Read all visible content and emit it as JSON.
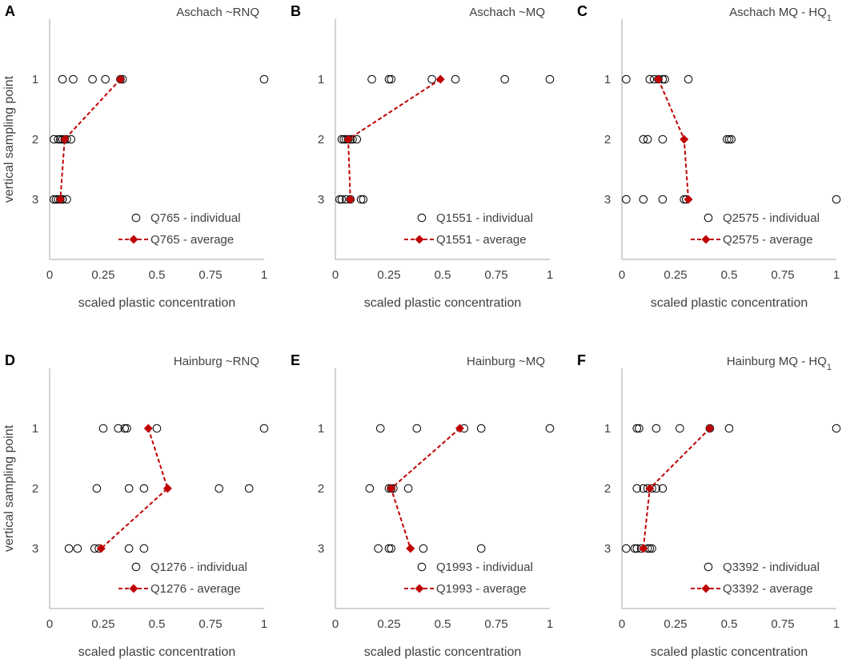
{
  "ylabel": "vertical sampling point",
  "xlabel": "scaled plastic concentration",
  "colors": {
    "average": "#c00000",
    "individual_marker": "#000000",
    "axis": "#a6a6a6",
    "text": "#404040"
  },
  "chart_data": [
    {
      "letter": "A",
      "type": "scatter",
      "title": "Aschach ~RNQ",
      "title_sub": "",
      "xlabel": "scaled plastic concentration",
      "ylabel": "vertical sampling point",
      "xlim": [
        0,
        1
      ],
      "ylim": [
        0,
        4
      ],
      "xticks": [
        0,
        0.25,
        0.5,
        0.75,
        1
      ],
      "xtick_labels": [
        "0",
        "0.25",
        "0.5",
        "0.75",
        "1"
      ],
      "yticks": [
        1,
        2,
        3
      ],
      "ytick_labels": [
        "1",
        "2",
        "3"
      ],
      "individual": {
        "name": "Q765 - individual",
        "points": [
          [
            0.06,
            1
          ],
          [
            0.11,
            1
          ],
          [
            0.2,
            1
          ],
          [
            0.26,
            1
          ],
          [
            0.33,
            1
          ],
          [
            0.34,
            1
          ],
          [
            1.0,
            1
          ],
          [
            0.02,
            2
          ],
          [
            0.04,
            2
          ],
          [
            0.05,
            2
          ],
          [
            0.06,
            2
          ],
          [
            0.07,
            2
          ],
          [
            0.08,
            2
          ],
          [
            0.1,
            2
          ],
          [
            0.02,
            3
          ],
          [
            0.03,
            3
          ],
          [
            0.04,
            3
          ],
          [
            0.05,
            3
          ],
          [
            0.06,
            3
          ],
          [
            0.06,
            3
          ],
          [
            0.08,
            3
          ]
        ]
      },
      "average": {
        "name": "Q765 - average",
        "points": [
          [
            0.33,
            1
          ],
          [
            0.07,
            2
          ],
          [
            0.05,
            3
          ]
        ]
      }
    },
    {
      "letter": "B",
      "type": "scatter",
      "title": "Aschach ~MQ",
      "title_sub": "",
      "xlabel": "scaled plastic concentration",
      "ylabel": "vertical sampling point",
      "xlim": [
        0,
        1
      ],
      "ylim": [
        0,
        4
      ],
      "xticks": [
        0,
        0.25,
        0.5,
        0.75,
        1
      ],
      "xtick_labels": [
        "0",
        "0.25",
        "0.5",
        "0.75",
        "1"
      ],
      "yticks": [
        1,
        2,
        3
      ],
      "ytick_labels": [
        "1",
        "2",
        "3"
      ],
      "individual": {
        "name": "Q1551 - individual",
        "points": [
          [
            0.17,
            1
          ],
          [
            0.25,
            1
          ],
          [
            0.26,
            1
          ],
          [
            0.45,
            1
          ],
          [
            0.56,
            1
          ],
          [
            0.79,
            1
          ],
          [
            1.0,
            1
          ],
          [
            0.03,
            2
          ],
          [
            0.04,
            2
          ],
          [
            0.05,
            2
          ],
          [
            0.06,
            2
          ],
          [
            0.07,
            2
          ],
          [
            0.08,
            2
          ],
          [
            0.1,
            2
          ],
          [
            0.02,
            3
          ],
          [
            0.03,
            3
          ],
          [
            0.05,
            3
          ],
          [
            0.07,
            3
          ],
          [
            0.12,
            3
          ],
          [
            0.13,
            3
          ]
        ]
      },
      "average": {
        "name": "Q1551 - average",
        "points": [
          [
            0.49,
            1
          ],
          [
            0.06,
            2
          ],
          [
            0.07,
            3
          ]
        ]
      }
    },
    {
      "letter": "C",
      "type": "scatter",
      "title": "Aschach MQ - HQ",
      "title_sub": "1",
      "xlabel": "scaled plastic concentration",
      "ylabel": "vertical sampling point",
      "xlim": [
        0,
        1
      ],
      "ylim": [
        0,
        4
      ],
      "xticks": [
        0,
        0.25,
        0.5,
        0.75,
        1
      ],
      "xtick_labels": [
        "0",
        "0.25",
        "0.5",
        "0.75",
        "1"
      ],
      "yticks": [
        1,
        2,
        3
      ],
      "ytick_labels": [
        "1",
        "2",
        "3"
      ],
      "individual": {
        "name": "Q2575 - individual",
        "points": [
          [
            0.02,
            1
          ],
          [
            0.13,
            1
          ],
          [
            0.15,
            1
          ],
          [
            0.17,
            1
          ],
          [
            0.19,
            1
          ],
          [
            0.2,
            1
          ],
          [
            0.31,
            1
          ],
          [
            0.1,
            2
          ],
          [
            0.12,
            2
          ],
          [
            0.19,
            2
          ],
          [
            0.49,
            2
          ],
          [
            0.5,
            2
          ],
          [
            0.51,
            2
          ],
          [
            0.02,
            3
          ],
          [
            0.1,
            3
          ],
          [
            0.19,
            3
          ],
          [
            0.29,
            3
          ],
          [
            0.3,
            3
          ],
          [
            1.0,
            3
          ]
        ]
      },
      "average": {
        "name": "Q2575 - average",
        "points": [
          [
            0.17,
            1
          ],
          [
            0.29,
            2
          ],
          [
            0.31,
            3
          ]
        ]
      }
    },
    {
      "letter": "D",
      "type": "scatter",
      "title": "Hainburg ~RNQ",
      "title_sub": "",
      "xlabel": "scaled plastic concentration",
      "ylabel": "vertical sampling point",
      "xlim": [
        0,
        1
      ],
      "ylim": [
        0,
        4
      ],
      "xticks": [
        0,
        0.25,
        0.5,
        0.75,
        1
      ],
      "xtick_labels": [
        "0",
        "0.25",
        "0.5",
        "0.75",
        "1"
      ],
      "yticks": [
        1,
        2,
        3
      ],
      "ytick_labels": [
        "1",
        "2",
        "3"
      ],
      "individual": {
        "name": "Q1276 - individual",
        "points": [
          [
            0.25,
            1
          ],
          [
            0.32,
            1
          ],
          [
            0.35,
            1
          ],
          [
            0.36,
            1
          ],
          [
            0.5,
            1
          ],
          [
            1.0,
            1
          ],
          [
            0.22,
            2
          ],
          [
            0.37,
            2
          ],
          [
            0.44,
            2
          ],
          [
            0.79,
            2
          ],
          [
            0.93,
            2
          ],
          [
            0.09,
            3
          ],
          [
            0.13,
            3
          ],
          [
            0.21,
            3
          ],
          [
            0.23,
            3
          ],
          [
            0.37,
            3
          ],
          [
            0.44,
            3
          ]
        ]
      },
      "average": {
        "name": "Q1276 - average",
        "points": [
          [
            0.46,
            1
          ],
          [
            0.55,
            2
          ],
          [
            0.24,
            3
          ]
        ]
      }
    },
    {
      "letter": "E",
      "type": "scatter",
      "title": "Hainburg ~MQ",
      "title_sub": "",
      "xlabel": "scaled plastic concentration",
      "ylabel": "vertical sampling point",
      "xlim": [
        0,
        1
      ],
      "ylim": [
        0,
        4
      ],
      "xticks": [
        0,
        0.25,
        0.5,
        0.75,
        1
      ],
      "xtick_labels": [
        "0",
        "0.25",
        "0.5",
        "0.75",
        "1"
      ],
      "yticks": [
        1,
        2,
        3
      ],
      "ytick_labels": [
        "1",
        "2",
        "3"
      ],
      "individual": {
        "name": "Q1993 - individual",
        "points": [
          [
            0.21,
            1
          ],
          [
            0.38,
            1
          ],
          [
            0.6,
            1
          ],
          [
            0.68,
            1
          ],
          [
            1.0,
            1
          ],
          [
            0.16,
            2
          ],
          [
            0.25,
            2
          ],
          [
            0.26,
            2
          ],
          [
            0.27,
            2
          ],
          [
            0.34,
            2
          ],
          [
            0.2,
            3
          ],
          [
            0.25,
            3
          ],
          [
            0.26,
            3
          ],
          [
            0.41,
            3
          ],
          [
            0.68,
            3
          ]
        ]
      },
      "average": {
        "name": "Q1993 - average",
        "points": [
          [
            0.58,
            1
          ],
          [
            0.26,
            2
          ],
          [
            0.35,
            3
          ]
        ]
      }
    },
    {
      "letter": "F",
      "type": "scatter",
      "title": "Hainburg MQ - HQ",
      "title_sub": "1",
      "xlabel": "scaled plastic concentration",
      "ylabel": "vertical sampling point",
      "xlim": [
        0,
        1
      ],
      "ylim": [
        0,
        4
      ],
      "xticks": [
        0,
        0.25,
        0.5,
        0.75,
        1
      ],
      "xtick_labels": [
        "0",
        "0.25",
        "0.5",
        "0.75",
        "1"
      ],
      "yticks": [
        1,
        2,
        3
      ],
      "ytick_labels": [
        "1",
        "2",
        "3"
      ],
      "individual": {
        "name": "Q3392 - individual",
        "points": [
          [
            0.07,
            1
          ],
          [
            0.08,
            1
          ],
          [
            0.16,
            1
          ],
          [
            0.27,
            1
          ],
          [
            0.41,
            1
          ],
          [
            0.5,
            1
          ],
          [
            1.0,
            1
          ],
          [
            0.07,
            2
          ],
          [
            0.1,
            2
          ],
          [
            0.12,
            2
          ],
          [
            0.14,
            2
          ],
          [
            0.16,
            2
          ],
          [
            0.19,
            2
          ],
          [
            0.02,
            3
          ],
          [
            0.06,
            3
          ],
          [
            0.07,
            3
          ],
          [
            0.09,
            3
          ],
          [
            0.12,
            3
          ],
          [
            0.13,
            3
          ],
          [
            0.14,
            3
          ]
        ]
      },
      "average": {
        "name": "Q3392 - average",
        "points": [
          [
            0.41,
            1
          ],
          [
            0.13,
            2
          ],
          [
            0.1,
            3
          ]
        ]
      }
    }
  ]
}
